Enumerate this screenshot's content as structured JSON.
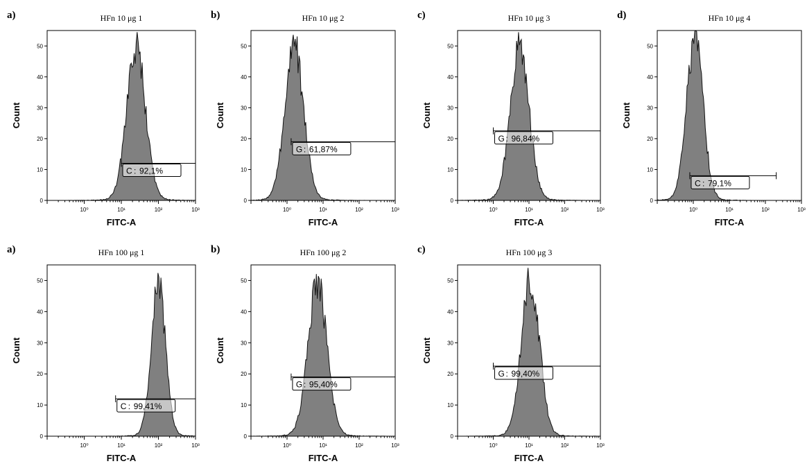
{
  "chart_data": [
    {
      "type": "area",
      "label": "a)",
      "title": "HFn 10 μg 1",
      "xlabel": "FITC-A",
      "ylabel": "Count",
      "xscale": "log",
      "xlim": [
        0.1,
        1000
      ],
      "ylim": [
        0,
        55
      ],
      "yticks": [
        0,
        10,
        20,
        30,
        40,
        50
      ],
      "xticks": [
        "10⁰",
        "10¹",
        "10²",
        "10³"
      ],
      "peak": {
        "x": 25,
        "y": 53,
        "width": 0.25
      },
      "gate": {
        "letter": "C",
        "value": "92,1%",
        "x_start": 10,
        "x_end": 1000,
        "y": 12
      }
    },
    {
      "type": "area",
      "label": "b)",
      "title": "HFn 10 μg 2",
      "xlabel": "FITC-A",
      "ylabel": "Count",
      "xscale": "log",
      "xlim": [
        0.1,
        1000
      ],
      "ylim": [
        0,
        55
      ],
      "yticks": [
        0,
        10,
        20,
        30,
        40,
        50
      ],
      "xticks": [
        "10⁰",
        "10¹",
        "10²",
        "10³"
      ],
      "peak": {
        "x": 1.6,
        "y": 53,
        "width": 0.26
      },
      "gate": {
        "letter": "G",
        "value": "61,87%",
        "x_start": 1.3,
        "x_end": 1000,
        "y": 19
      }
    },
    {
      "type": "area",
      "label": "c)",
      "title": "HFn 10 μg 3",
      "xlabel": "FITC-A",
      "ylabel": "Count",
      "xscale": "log",
      "xlim": [
        0.1,
        1000
      ],
      "ylim": [
        0,
        55
      ],
      "yticks": [
        0,
        10,
        20,
        30,
        40,
        50
      ],
      "xticks": [
        "10⁰",
        "10¹",
        "10²",
        "10³"
      ],
      "peak": {
        "x": 5.5,
        "y": 53,
        "width": 0.26
      },
      "gate": {
        "letter": "G",
        "value": "96,84%",
        "x_start": 1,
        "x_end": 1000,
        "y": 22.5
      }
    },
    {
      "type": "area",
      "label": "d)",
      "title": "HFn 10 μg 4",
      "xlabel": "FITC-A",
      "ylabel": "Count",
      "xscale": "log",
      "xlim": [
        0.1,
        1000
      ],
      "ylim": [
        0,
        55
      ],
      "yticks": [
        0,
        10,
        20,
        30,
        40,
        50
      ],
      "xticks": [
        "10⁰",
        "10¹",
        "10²",
        "10³"
      ],
      "peak": {
        "x": 1.1,
        "y": 55,
        "width": 0.23
      },
      "gate": {
        "letter": "C",
        "value": "79,1%",
        "x_start": 0.8,
        "x_end": 200,
        "y": 8
      }
    },
    {
      "type": "area",
      "label": "a)",
      "title": "HFn 100 μg 1",
      "xlabel": "FITC-A",
      "ylabel": "Count",
      "xscale": "log",
      "xlim": [
        0.1,
        1000
      ],
      "ylim": [
        0,
        55
      ],
      "yticks": [
        0,
        10,
        20,
        30,
        40,
        50
      ],
      "xticks": [
        "10⁰",
        "10¹",
        "10²",
        "10³"
      ],
      "peak": {
        "x": 100,
        "y": 54,
        "width": 0.19
      },
      "gate": {
        "letter": "C",
        "value": "99,41%",
        "x_start": 7,
        "x_end": 1000,
        "y": 12
      }
    },
    {
      "type": "area",
      "label": "b)",
      "title": "HFn 100 μg 2",
      "xlabel": "FITC-A",
      "ylabel": "Count",
      "xscale": "log",
      "xlim": [
        0.1,
        1000
      ],
      "ylim": [
        0,
        55
      ],
      "yticks": [
        0,
        10,
        20,
        30,
        40,
        50
      ],
      "xticks": [
        "10⁰",
        "10¹",
        "10²",
        "10³"
      ],
      "peak": {
        "x": 7,
        "y": 53,
        "width": 0.26
      },
      "gate": {
        "letter": "G",
        "value": "95,40%",
        "x_start": 1.3,
        "x_end": 1000,
        "y": 19
      }
    },
    {
      "type": "area",
      "label": "c)",
      "title": "HFn 100 μg 3",
      "xlabel": "FITC-A",
      "ylabel": "Count",
      "xscale": "log",
      "xlim": [
        0.1,
        1000
      ],
      "ylim": [
        0,
        55
      ],
      "yticks": [
        0,
        10,
        20,
        30,
        40,
        50
      ],
      "xticks": [
        "10⁰",
        "10¹",
        "10²",
        "10³"
      ],
      "peak": {
        "x": 11,
        "y": 54,
        "width": 0.25
      },
      "gate": {
        "letter": "G",
        "value": "99,40%",
        "x_start": 1,
        "x_end": 1000,
        "y": 22.5
      }
    }
  ],
  "colors": {
    "fill": "#808080",
    "outline": "#111111",
    "axis": "#000000",
    "background": "#ffffff"
  }
}
